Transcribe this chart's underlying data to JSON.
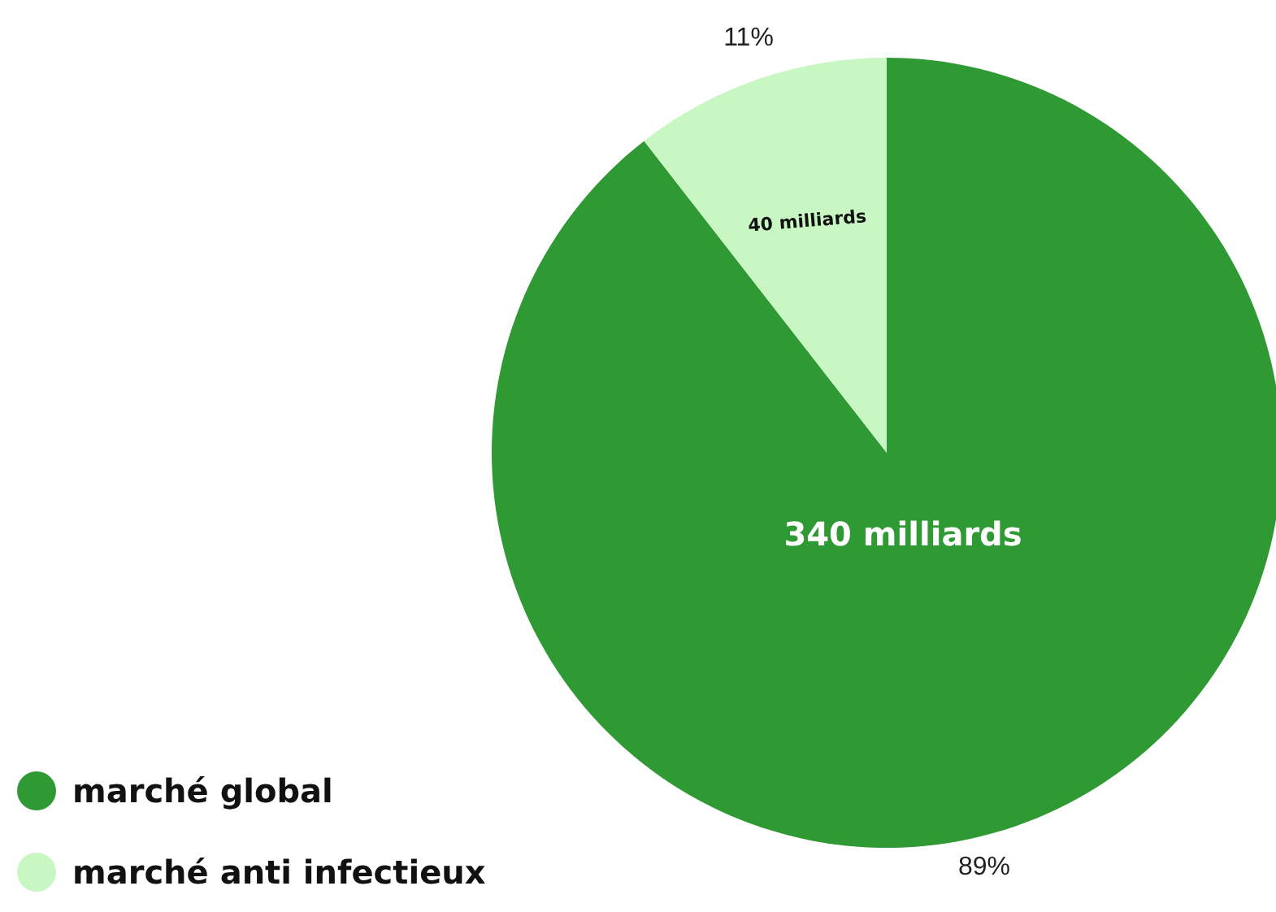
{
  "chart_data": {
    "type": "pie",
    "categories": [
      "marché global",
      "marché anti infectieux"
    ],
    "values": [
      340,
      40
    ],
    "colors": [
      "#2f9a33",
      "#c8f7c4"
    ],
    "value_labels": [
      "340 milliards",
      "40 milliards"
    ],
    "annotations": [
      {
        "text": "89%",
        "x": "marché global"
      },
      {
        "text": "11%",
        "x": "marché anti infectieux"
      }
    ],
    "legend": "bottom left"
  }
}
